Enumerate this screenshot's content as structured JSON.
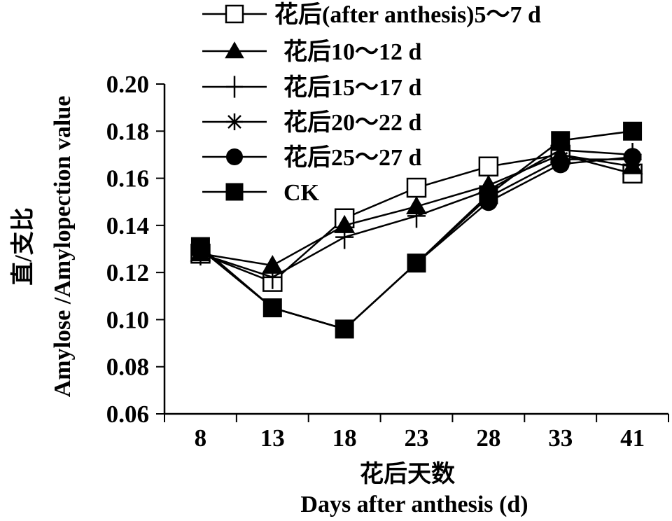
{
  "chart_data": {
    "type": "line",
    "categories": [
      "8",
      "13",
      "18",
      "23",
      "28",
      "33",
      "41"
    ],
    "ylim": [
      0.06,
      0.2
    ],
    "yticks": [
      "0.06",
      "0.08",
      "0.10",
      "0.12",
      "0.14",
      "0.16",
      "0.18",
      "0.20"
    ],
    "xlabel_cn": "花后天数",
    "xlabel_en": "Days after anthesis  (d)",
    "ylabel_cn": "直/支比",
    "ylabel_en": "Amylose /Amylopection value",
    "legend_position": "top",
    "series": [
      {
        "name": "花后(after anthesis)5～7 d",
        "marker": "open-square",
        "values": [
          0.128,
          0.116,
          0.143,
          0.156,
          0.165,
          0.17,
          0.162
        ]
      },
      {
        "name": "花后10～12 d",
        "marker": "filled-triangle",
        "values": [
          0.128,
          0.123,
          0.14,
          0.148,
          0.157,
          0.17,
          0.165
        ]
      },
      {
        "name": "花后15～17 d",
        "marker": "plus",
        "values": [
          0.128,
          0.118,
          0.135,
          0.144,
          0.155,
          0.172,
          0.17
        ]
      },
      {
        "name": "花后20～22 d",
        "marker": "asterisk",
        "values": [
          0.13,
          0.105,
          0.096,
          0.124,
          0.152,
          0.168,
          0.168
        ]
      },
      {
        "name": "花后25～27 d",
        "marker": "filled-circle",
        "values": [
          0.13,
          0.105,
          0.096,
          0.124,
          0.15,
          0.166,
          0.169
        ]
      },
      {
        "name": "CK",
        "marker": "filled-square",
        "values": [
          0.131,
          0.105,
          0.096,
          0.124,
          0.153,
          0.176,
          0.18
        ]
      }
    ]
  }
}
